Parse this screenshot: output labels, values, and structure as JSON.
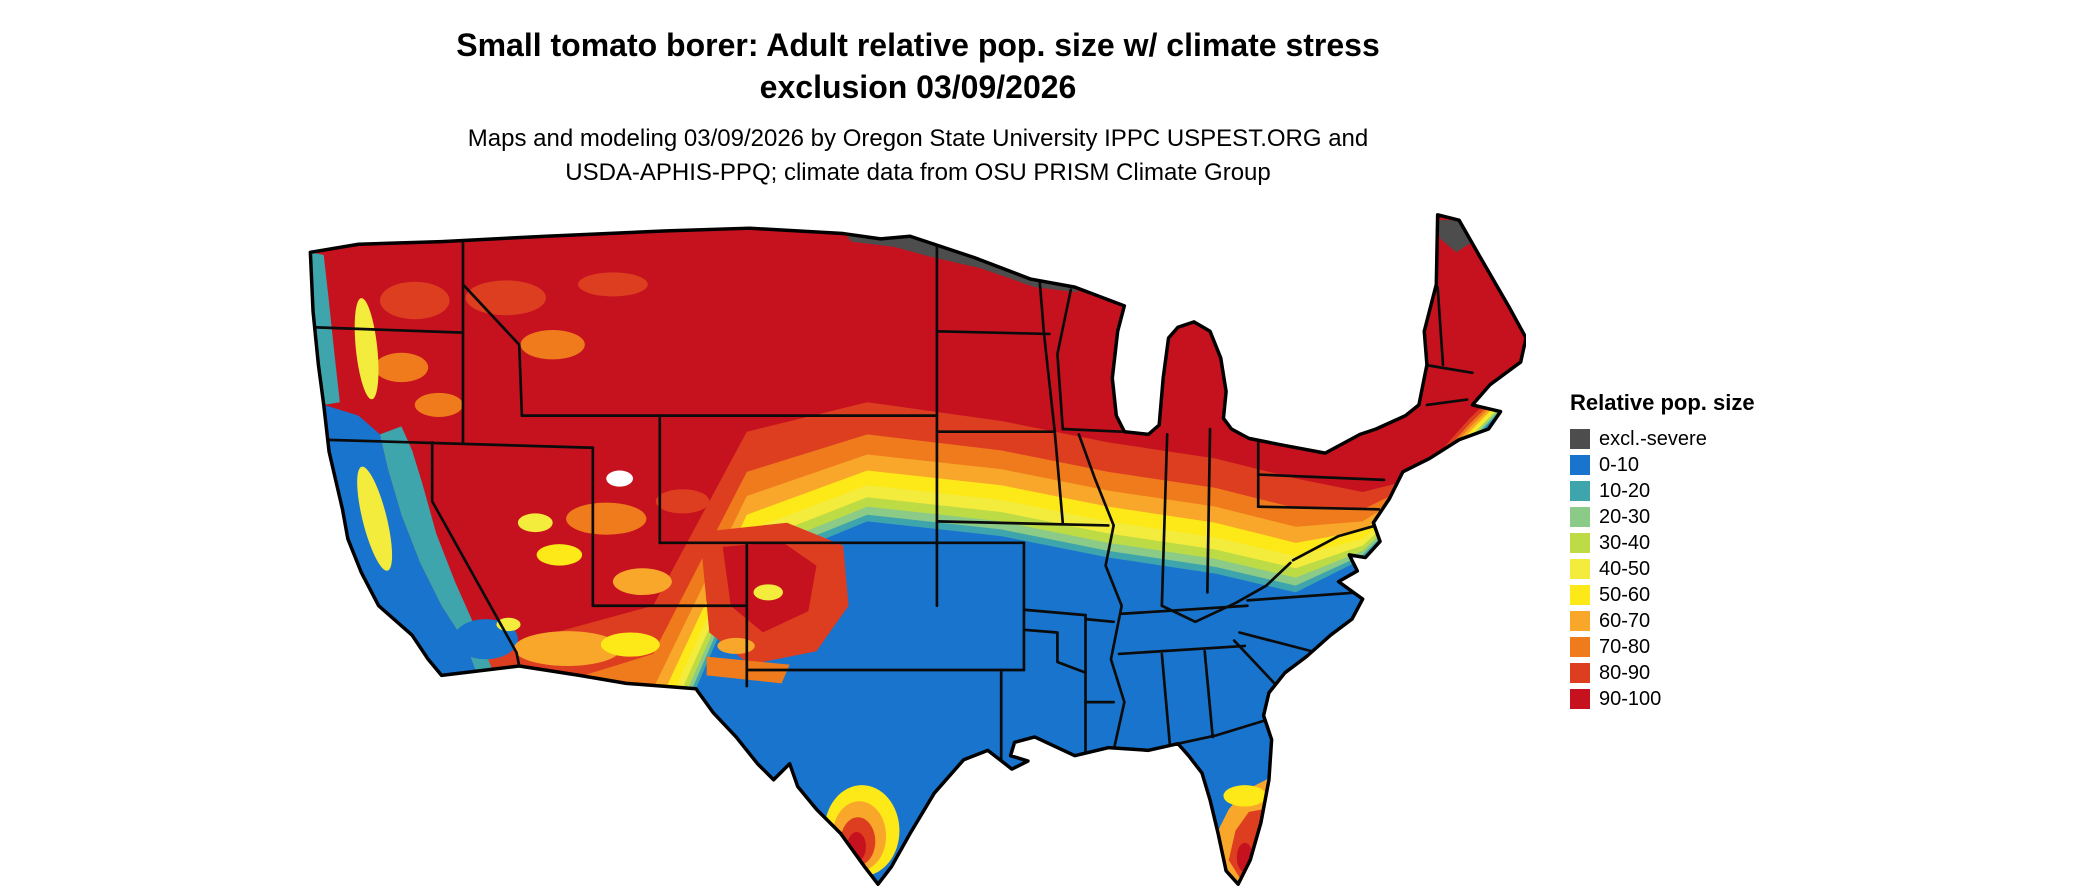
{
  "title": {
    "line1": "Small tomato borer: Adult relative pop. size w/ climate stress",
    "line2": "exclusion 03/09/2026"
  },
  "subtitle": {
    "line1": "Maps and modeling 03/09/2026 by Oregon State University IPPC USPEST.ORG and",
    "line2": "USDA-APHIS-PPQ; climate data from OSU PRISM Climate Group"
  },
  "legend": {
    "title": "Relative pop. size",
    "items": [
      {
        "label": "excl.-severe",
        "color": "#4d4d4d"
      },
      {
        "label": "0-10",
        "color": "#1874cd"
      },
      {
        "label": "10-20",
        "color": "#3fa5ad"
      },
      {
        "label": "20-30",
        "color": "#8ccb87"
      },
      {
        "label": "30-40",
        "color": "#bddb44"
      },
      {
        "label": "40-50",
        "color": "#f4ec3d"
      },
      {
        "label": "50-60",
        "color": "#fde818"
      },
      {
        "label": "60-70",
        "color": "#f9a72a"
      },
      {
        "label": "70-80",
        "color": "#ef7b1c"
      },
      {
        "label": "80-90",
        "color": "#dd3e20"
      },
      {
        "label": "90-100",
        "color": "#c6121f"
      }
    ]
  }
}
